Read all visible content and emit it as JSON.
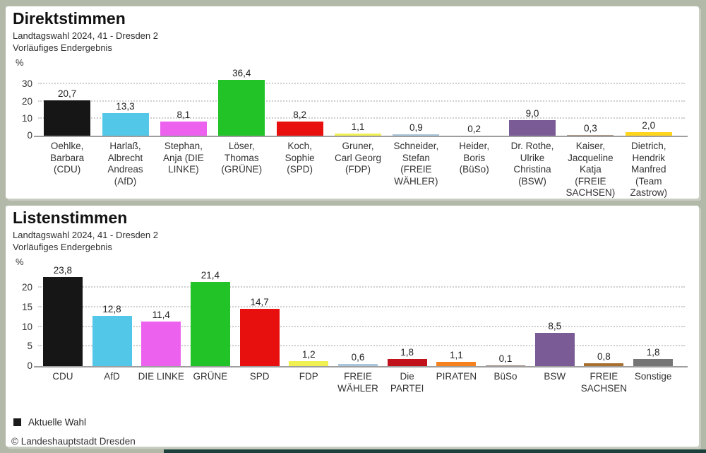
{
  "frame": {
    "background_color": "#b3b9a9",
    "panel_color": "#ffffff",
    "accent_strip_color": "#1c403c",
    "grid_color": "#cfcfcf",
    "baseline_color": "#9e9e9e"
  },
  "legend": {
    "label": "Aktuelle Wahl",
    "swatch_color": "#1a1a1a",
    "position": "bottom-left"
  },
  "footer": {
    "copyright": "© Landeshauptstadt Dresden"
  },
  "chart_data": [
    {
      "type": "bar",
      "title": "Direktstimmen",
      "subtitle": "Landtagswahl 2024, 41 - Dresden 2",
      "status": "Vorläufiges Endergebnis",
      "unit": "%",
      "xlabel": "",
      "ylabel": "%",
      "ylim": [
        0,
        40
      ],
      "yticks": [
        0,
        10,
        20,
        30
      ],
      "grid": true,
      "categories": [
        "Oehlke,\nBarbara\n(CDU)",
        "Harlaß,\nAlbrecht\nAndreas\n(AfD)",
        "Stephan,\nAnja (DIE\nLINKE)",
        "Löser,\nThomas\n(GRÜNE)",
        "Koch,\nSophie\n(SPD)",
        "Gruner,\nCarl Georg\n(FDP)",
        "Schneider,\nStefan\n(FREIE\nWÄHLER)",
        "Heider,\nBoris\n(BüSo)",
        "Dr. Rothe,\nUlrike\nChristina\n(BSW)",
        "Kaiser,\nJacqueline\nKatja\n(FREIE\nSACHSEN)",
        "Dietrich,\nHendrik\nManfred\n(Team\nZastrow)"
      ],
      "values": [
        20.7,
        13.3,
        8.1,
        36.4,
        8.2,
        1.1,
        0.9,
        0.2,
        9.0,
        0.3,
        2.0
      ],
      "value_labels": [
        "20,7",
        "13,3",
        "8,1",
        "36,4",
        "8,2",
        "1,1",
        "0,9",
        "0,2",
        "9,0",
        "0,3",
        "2,0"
      ],
      "colors": [
        "#161616",
        "#53c7e8",
        "#ec62ee",
        "#22c327",
        "#e8100f",
        "#f0ef53",
        "#a9c6dc",
        "#9b8579",
        "#7a5b96",
        "#ab9584",
        "#ffd51e"
      ]
    },
    {
      "type": "bar",
      "title": "Listenstimmen",
      "subtitle": "Landtagswahl 2024, 41 - Dresden 2",
      "status": "Vorläufiges Endergebnis",
      "unit": "%",
      "xlabel": "",
      "ylabel": "%",
      "ylim": [
        0,
        26
      ],
      "yticks": [
        0,
        5,
        10,
        15,
        20
      ],
      "grid": true,
      "categories": [
        "CDU",
        "AfD",
        "DIE LINKE",
        "GRÜNE",
        "SPD",
        "FDP",
        "FREIE\nWÄHLER",
        "Die\nPARTEI",
        "PIRATEN",
        "BüSo",
        "BSW",
        "FREIE\nSACHSEN",
        "Sonstige"
      ],
      "values": [
        23.8,
        12.8,
        11.4,
        21.4,
        14.7,
        1.2,
        0.6,
        1.8,
        1.1,
        0.1,
        8.5,
        0.8,
        1.8
      ],
      "value_labels": [
        "23,8",
        "12,8",
        "11,4",
        "21,4",
        "14,7",
        "1,2",
        "0,6",
        "1,8",
        "1,1",
        "0,1",
        "8,5",
        "0,8",
        "1,8"
      ],
      "colors": [
        "#161616",
        "#53c7e8",
        "#ec62ee",
        "#22c327",
        "#e8100f",
        "#f0f053",
        "#a9c6dc",
        "#c1121c",
        "#f5821f",
        "#9b8579",
        "#7a5b96",
        "#a8702f",
        "#757575"
      ]
    }
  ]
}
